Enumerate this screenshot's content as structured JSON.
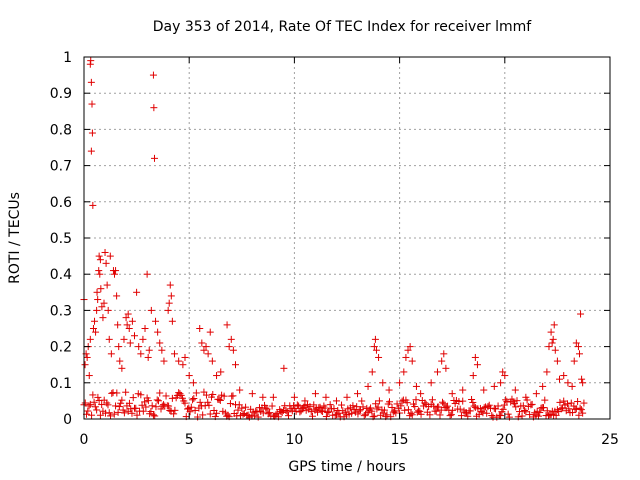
{
  "chart_data": {
    "type": "scatter",
    "title": "Day 353 of 2014, Rate Of TEC Index for receiver lmmf",
    "xlabel": "GPS time / hours",
    "ylabel": "ROTI / TECUs",
    "xlim": [
      0,
      25
    ],
    "ylim": [
      0,
      1
    ],
    "xticks": [
      "0",
      "5",
      "10",
      "15",
      "20",
      "25"
    ],
    "yticks": [
      "0",
      "0.1",
      "0.2",
      "0.3",
      "0.4",
      "0.5",
      "0.6",
      "0.7",
      "0.8",
      "0.9",
      "1"
    ],
    "grid": true,
    "marker": "+",
    "color": "#e00000",
    "series": [
      {
        "name": "ROTI",
        "points": [
          [
            0.0,
            0.33
          ],
          [
            0.05,
            0.15
          ],
          [
            0.1,
            0.18
          ],
          [
            0.15,
            0.17
          ],
          [
            0.2,
            0.2
          ],
          [
            0.25,
            0.12
          ],
          [
            0.3,
            0.22
          ],
          [
            0.3,
            0.98
          ],
          [
            0.32,
            0.99
          ],
          [
            0.35,
            0.93
          ],
          [
            0.38,
            0.87
          ],
          [
            0.4,
            0.79
          ],
          [
            0.35,
            0.74
          ],
          [
            0.42,
            0.59
          ],
          [
            0.45,
            0.25
          ],
          [
            0.5,
            0.27
          ],
          [
            0.55,
            0.24
          ],
          [
            0.6,
            0.3
          ],
          [
            0.62,
            0.35
          ],
          [
            0.65,
            0.33
          ],
          [
            0.7,
            0.41
          ],
          [
            0.72,
            0.45
          ],
          [
            0.75,
            0.4
          ],
          [
            0.78,
            0.44
          ],
          [
            0.8,
            0.36
          ],
          [
            0.85,
            0.31
          ],
          [
            0.9,
            0.28
          ],
          [
            0.95,
            0.32
          ],
          [
            1.0,
            0.46
          ],
          [
            1.05,
            0.43
          ],
          [
            1.1,
            0.37
          ],
          [
            1.15,
            0.3
          ],
          [
            1.2,
            0.22
          ],
          [
            1.25,
            0.45
          ],
          [
            1.3,
            0.18
          ],
          [
            1.4,
            0.41
          ],
          [
            1.45,
            0.4
          ],
          [
            1.5,
            0.41
          ],
          [
            1.55,
            0.34
          ],
          [
            1.6,
            0.26
          ],
          [
            1.65,
            0.2
          ],
          [
            1.7,
            0.16
          ],
          [
            1.8,
            0.14
          ],
          [
            1.9,
            0.22
          ],
          [
            2.0,
            0.28
          ],
          [
            2.05,
            0.26
          ],
          [
            2.1,
            0.29
          ],
          [
            2.15,
            0.25
          ],
          [
            2.2,
            0.21
          ],
          [
            2.3,
            0.27
          ],
          [
            2.4,
            0.23
          ],
          [
            2.5,
            0.35
          ],
          [
            2.6,
            0.2
          ],
          [
            2.7,
            0.18
          ],
          [
            2.8,
            0.22
          ],
          [
            2.9,
            0.25
          ],
          [
            3.0,
            0.4
          ],
          [
            3.05,
            0.17
          ],
          [
            3.1,
            0.19
          ],
          [
            3.2,
            0.3
          ],
          [
            3.3,
            0.95
          ],
          [
            3.32,
            0.86
          ],
          [
            3.35,
            0.72
          ],
          [
            3.4,
            0.27
          ],
          [
            3.5,
            0.24
          ],
          [
            3.6,
            0.21
          ],
          [
            3.7,
            0.19
          ],
          [
            3.8,
            0.16
          ],
          [
            4.0,
            0.3
          ],
          [
            4.05,
            0.32
          ],
          [
            4.1,
            0.37
          ],
          [
            4.15,
            0.34
          ],
          [
            4.2,
            0.27
          ],
          [
            4.3,
            0.18
          ],
          [
            4.5,
            0.16
          ],
          [
            4.7,
            0.15
          ],
          [
            4.8,
            0.17
          ],
          [
            5.0,
            0.12
          ],
          [
            5.2,
            0.1
          ],
          [
            5.5,
            0.25
          ],
          [
            5.6,
            0.21
          ],
          [
            5.7,
            0.19
          ],
          [
            5.8,
            0.2
          ],
          [
            5.9,
            0.18
          ],
          [
            6.0,
            0.24
          ],
          [
            6.1,
            0.16
          ],
          [
            6.3,
            0.12
          ],
          [
            6.5,
            0.13
          ],
          [
            6.8,
            0.26
          ],
          [
            6.9,
            0.2
          ],
          [
            7.0,
            0.22
          ],
          [
            7.1,
            0.19
          ],
          [
            7.2,
            0.15
          ],
          [
            7.4,
            0.08
          ],
          [
            8.0,
            0.07
          ],
          [
            8.5,
            0.06
          ],
          [
            9.0,
            0.06
          ],
          [
            9.5,
            0.14
          ],
          [
            10.0,
            0.06
          ],
          [
            10.5,
            0.05
          ],
          [
            11.0,
            0.07
          ],
          [
            11.5,
            0.06
          ],
          [
            12.0,
            0.05
          ],
          [
            12.5,
            0.06
          ],
          [
            13.0,
            0.07
          ],
          [
            13.5,
            0.09
          ],
          [
            13.7,
            0.13
          ],
          [
            13.8,
            0.2
          ],
          [
            13.85,
            0.22
          ],
          [
            13.9,
            0.19
          ],
          [
            14.0,
            0.17
          ],
          [
            14.2,
            0.1
          ],
          [
            14.5,
            0.08
          ],
          [
            15.0,
            0.1
          ],
          [
            15.2,
            0.13
          ],
          [
            15.3,
            0.17
          ],
          [
            15.4,
            0.19
          ],
          [
            15.5,
            0.2
          ],
          [
            15.6,
            0.16
          ],
          [
            15.8,
            0.09
          ],
          [
            16.0,
            0.07
          ],
          [
            16.5,
            0.1
          ],
          [
            16.8,
            0.13
          ],
          [
            17.0,
            0.16
          ],
          [
            17.1,
            0.18
          ],
          [
            17.2,
            0.14
          ],
          [
            17.5,
            0.07
          ],
          [
            18.0,
            0.08
          ],
          [
            18.5,
            0.12
          ],
          [
            18.6,
            0.17
          ],
          [
            18.7,
            0.15
          ],
          [
            19.0,
            0.08
          ],
          [
            19.5,
            0.09
          ],
          [
            19.8,
            0.1
          ],
          [
            19.9,
            0.13
          ],
          [
            20.0,
            0.12
          ],
          [
            20.5,
            0.08
          ],
          [
            21.0,
            0.06
          ],
          [
            21.5,
            0.07
          ],
          [
            21.8,
            0.09
          ],
          [
            22.0,
            0.13
          ],
          [
            22.1,
            0.2
          ],
          [
            22.2,
            0.24
          ],
          [
            22.25,
            0.21
          ],
          [
            22.3,
            0.22
          ],
          [
            22.35,
            0.26
          ],
          [
            22.4,
            0.19
          ],
          [
            22.5,
            0.16
          ],
          [
            22.6,
            0.11
          ],
          [
            22.8,
            0.12
          ],
          [
            23.0,
            0.1
          ],
          [
            23.2,
            0.09
          ],
          [
            23.3,
            0.16
          ],
          [
            23.4,
            0.21
          ],
          [
            23.5,
            0.2
          ],
          [
            23.55,
            0.18
          ],
          [
            23.6,
            0.29
          ],
          [
            23.65,
            0.11
          ],
          [
            23.7,
            0.1
          ]
        ]
      }
    ]
  }
}
